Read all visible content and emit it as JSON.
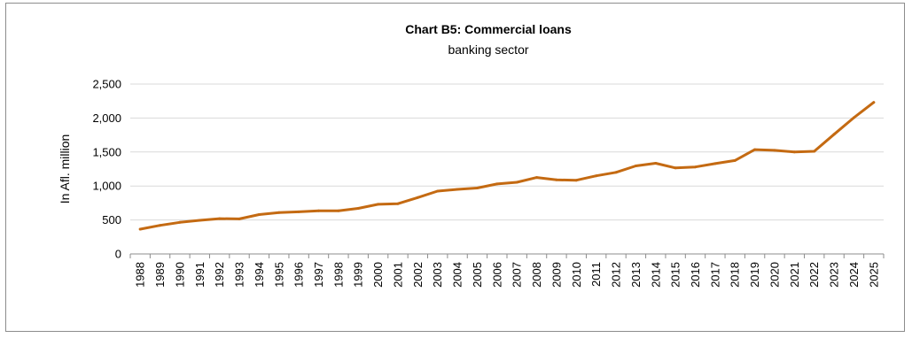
{
  "chart_data": {
    "type": "line",
    "title": "Chart B5: Commercial loans",
    "subtitle": "banking sector",
    "xlabel": "",
    "ylabel": "In Afl. million",
    "ylim": [
      0,
      2500
    ],
    "yticks": [
      0,
      500,
      1000,
      1500,
      2000,
      2500
    ],
    "ytick_labels": [
      "0",
      "500",
      "1,000",
      "1,500",
      "2,000",
      "2,500"
    ],
    "grid": true,
    "line_color": "#c46a12",
    "x": [
      "1988",
      "1989",
      "1990",
      "1991",
      "1992",
      "1993",
      "1994",
      "1995",
      "1996",
      "1997",
      "1998",
      "1999",
      "2000",
      "2001",
      "2002",
      "2003",
      "2004",
      "2005",
      "2006",
      "2007",
      "2008",
      "2009",
      "2010",
      "2011",
      "2012",
      "2013",
      "2014",
      "2015",
      "2016",
      "2017",
      "2018",
      "2019",
      "2020",
      "2021",
      "2022",
      "2023",
      "2024",
      "2025"
    ],
    "series": [
      {
        "values": [
          365,
          420,
          465,
          495,
          520,
          515,
          580,
          610,
          620,
          635,
          635,
          670,
          730,
          740,
          830,
          925,
          950,
          970,
          1030,
          1055,
          1125,
          1090,
          1085,
          1150,
          1200,
          1295,
          1335,
          1265,
          1280,
          1330,
          1375,
          1535,
          1525,
          1500,
          1510,
          1760,
          2005,
          2230
        ]
      }
    ]
  }
}
